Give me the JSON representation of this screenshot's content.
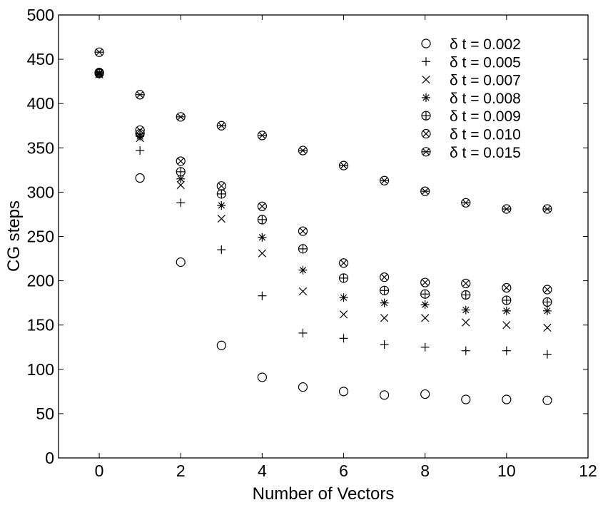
{
  "chart_data": {
    "type": "scatter",
    "title": "",
    "xlabel": "Number of Vectors",
    "ylabel": "CG steps",
    "xlim": [
      -1,
      12
    ],
    "ylim": [
      0,
      500
    ],
    "xticks": [
      0,
      2,
      4,
      6,
      8,
      10,
      12
    ],
    "yticks": [
      0,
      50,
      100,
      150,
      200,
      250,
      300,
      350,
      400,
      450,
      500
    ],
    "grid": false,
    "legend_position": "top-right",
    "x": [
      0,
      1,
      2,
      3,
      4,
      5,
      6,
      7,
      8,
      9,
      10,
      11
    ],
    "series": [
      {
        "name": "δ t = 0.002",
        "marker": "circle",
        "values": [
          434,
          316,
          221,
          127,
          91,
          80,
          75,
          71,
          72,
          66,
          66,
          65
        ]
      },
      {
        "name": "δ t = 0.005",
        "marker": "plus",
        "values": [
          433,
          347,
          288,
          235,
          183,
          141,
          135,
          128,
          125,
          121,
          121,
          117
        ]
      },
      {
        "name": "δ t = 0.007",
        "marker": "x",
        "values": [
          433,
          361,
          308,
          270,
          231,
          188,
          162,
          158,
          158,
          153,
          150,
          147
        ]
      },
      {
        "name": "δ t = 0.008",
        "marker": "asterisk",
        "values": [
          434,
          363,
          315,
          285,
          249,
          212,
          181,
          175,
          173,
          167,
          166,
          166
        ]
      },
      {
        "name": "δ t = 0.009",
        "marker": "circle-plus",
        "values": [
          435,
          366,
          323,
          298,
          269,
          236,
          203,
          189,
          185,
          184,
          178,
          176
        ]
      },
      {
        "name": "δ t = 0.010",
        "marker": "circle-x",
        "values": [
          435,
          370,
          335,
          307,
          284,
          256,
          220,
          204,
          198,
          197,
          192,
          190
        ]
      },
      {
        "name": "δ t = 0.015",
        "marker": "circle-x-star",
        "values": [
          458,
          410,
          385,
          375,
          364,
          347,
          330,
          313,
          301,
          288,
          281,
          281
        ]
      }
    ]
  }
}
